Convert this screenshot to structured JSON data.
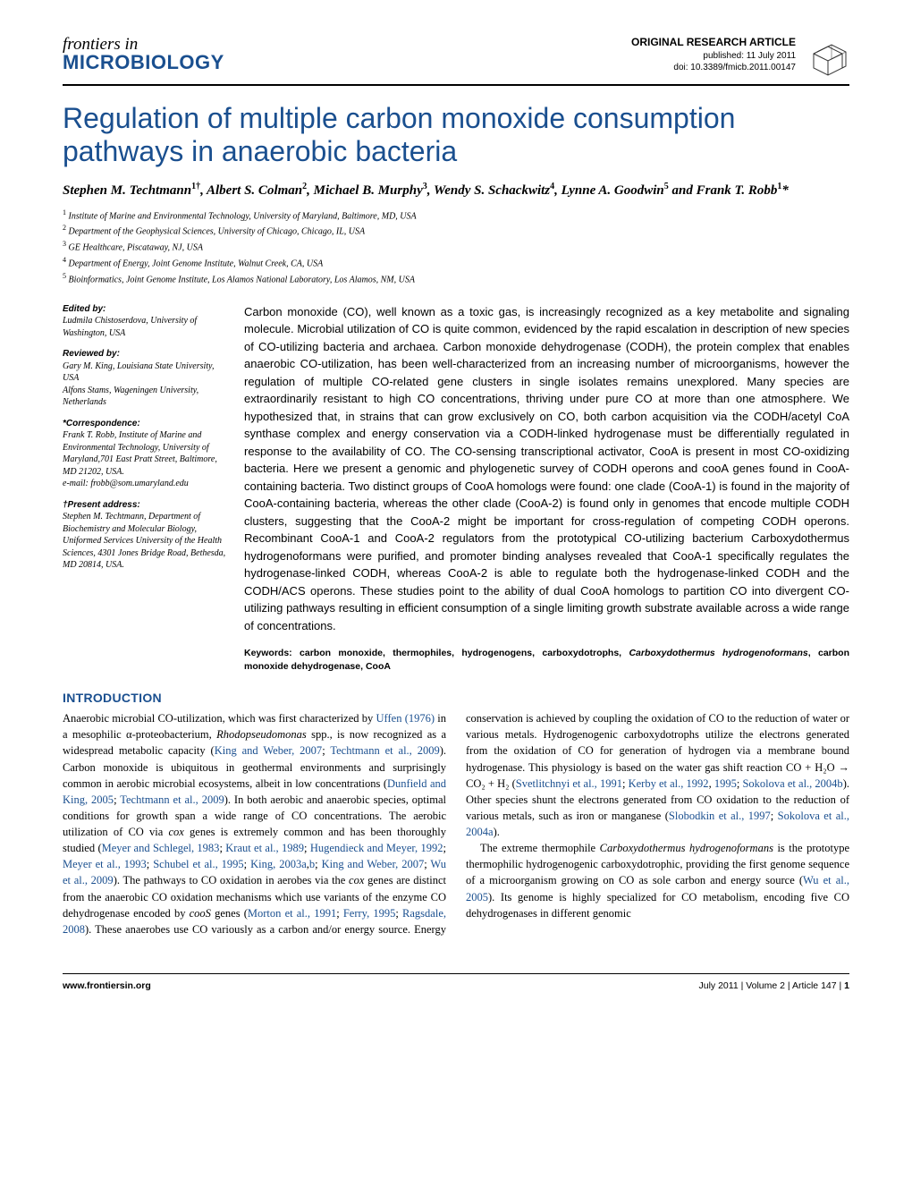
{
  "brand": {
    "top": "frontiers in",
    "bottom": "MICROBIOLOGY"
  },
  "meta": {
    "type": "ORIGINAL RESEARCH ARTICLE",
    "published": "published: 11 July 2011",
    "doi": "doi: 10.3389/fmicb.2011.00147"
  },
  "title": "Regulation of multiple carbon monoxide consumption pathways in anaerobic bacteria",
  "authors_html": "Stephen M. Techtmann<sup>1†</sup>, Albert S. Colman<sup>2</sup>, Michael B. Murphy<sup>3</sup>, Wendy S. Schackwitz<sup>4</sup>, Lynne A. Goodwin<sup>5</sup> and Frank T. Robb<sup>1</sup>*",
  "affiliations": [
    "Institute of Marine and Environmental Technology, University of Maryland, Baltimore, MD, USA",
    "Department of the Geophysical Sciences, University of Chicago, Chicago, IL, USA",
    "GE Healthcare, Piscataway, NJ, USA",
    "Department of Energy, Joint Genome Institute, Walnut Creek, CA, USA",
    "Bioinformatics, Joint Genome Institute, Los Alamos National Laboratory, Los Alamos, NM, USA"
  ],
  "sidebar": {
    "edited_by_label": "Edited by:",
    "edited_by": "Ludmila Chistoserdova, University of Washington, USA",
    "reviewed_by_label": "Reviewed by:",
    "reviewed_by_1": "Gary M. King, Louisiana State University, USA",
    "reviewed_by_2": "Alfons Stams, Wageningen University, Netherlands",
    "correspondence_label": "*Correspondence:",
    "correspondence": "Frank T. Robb, Institute of Marine and Environmental Technology, University of Maryland,701 East Pratt Street, Baltimore, MD 21202, USA.",
    "correspondence_email": "e-mail: frobb@som.umaryland.edu",
    "present_label": "†Present address:",
    "present": "Stephen M. Techtmann, Department of Biochemistry and Molecular Biology, Uniformed Services University of the Health Sciences, 4301 Jones Bridge Road, Bethesda, MD 20814, USA."
  },
  "abstract": "Carbon monoxide (CO), well known as a toxic gas, is increasingly recognized as a key metabolite and signaling molecule. Microbial utilization of CO is quite common, evidenced by the rapid escalation in description of new species of CO-utilizing bacteria and archaea. Carbon monoxide dehydrogenase (CODH), the protein complex that enables anaerobic CO-utilization, has been well-characterized from an increasing number of microorganisms, however the regulation of multiple CO-related gene clusters in single isolates remains unexplored. Many species are extraordinarily resistant to high CO concentrations, thriving under pure CO at more than one atmosphere. We hypothesized that, in strains that can grow exclusively on CO, both carbon acquisition via the CODH/acetyl CoA synthase complex and energy conservation via a CODH-linked hydrogenase must be differentially regulated in response to the availability of CO. The CO-sensing transcriptional activator, CooA is present in most CO-oxidizing bacteria. Here we present a genomic and phylogenetic survey of CODH operons and cooA genes found in CooA-containing bacteria. Two distinct groups of CooA homologs were found: one clade (CooA-1) is found in the majority of CooA-containing bacteria, whereas the other clade (CooA-2) is found only in genomes that encode multiple CODH clusters, suggesting that the CooA-2 might be important for cross-regulation of competing CODH operons. Recombinant CooA-1 and CooA-2 regulators from the prototypical CO-utilizing bacterium Carboxydothermus hydrogenoformans were purified, and promoter binding analyses revealed that CooA-1 specifically regulates the hydrogenase-linked CODH, whereas CooA-2 is able to regulate both the hydrogenase-linked CODH and the CODH/ACS operons. These studies point to the ability of dual CooA homologs to partition CO into divergent CO-utilizing pathways resulting in efficient consumption of a single limiting growth substrate available across a wide range of concentrations.",
  "keywords_prefix": "Keywords: carbon monoxide, thermophiles, hydrogenogens, carboxydotrophs, ",
  "keywords_italic": "Carboxydothermus hydrogenoformans",
  "keywords_suffix": ", carbon monoxide dehydrogenase, CooA",
  "intro_title": "INTRODUCTION",
  "intro_p1_pre": "Anaerobic microbial CO-utilization, which was first characterized by ",
  "intro_p1_ref1": "Uffen (1976)",
  "intro_p1_mid1": " in a mesophilic α-proteobacterium, ",
  "intro_p1_it1": "Rhodopseudomonas",
  "intro_p1_mid2": " spp., is now recognized as a widespread metabolic capacity (",
  "intro_p1_ref2": "King and Weber, 2007",
  "intro_p1_sep1": "; ",
  "intro_p1_ref3": "Techtmann et al., 2009",
  "intro_p1_mid3": "). Carbon monoxide is ubiquitous in geothermal environments and surprisingly common in aerobic microbial ecosystems, albeit in low concentrations (",
  "intro_p1_ref4": "Dunfield and King, 2005",
  "intro_p1_ref5": "Techtmann et al., 2009",
  "intro_p1_mid4": "). In both aerobic and anaerobic species, optimal conditions for growth span a wide range of CO concentrations. The aerobic utilization of CO via ",
  "intro_p1_it2": "cox",
  "intro_p1_mid5": " genes is extremely common and has been thoroughly studied (",
  "intro_p1_ref6": "Meyer and Schlegel, 1983",
  "intro_p1_ref7": "Kraut et al., 1989",
  "intro_p1_ref8": "Hugendieck and Meyer, 1992",
  "intro_p1_ref9": "Meyer et al., 1993",
  "intro_p1_ref10": "Schubel et al., 1995",
  "intro_p1_ref11": "King, 2003a",
  "intro_p1_ref11b": "b",
  "intro_p1_ref12": "King and Weber, 2007",
  "intro_p1_ref13": "Wu et al., 2009",
  "intro_p1_mid6": "). The pathways to CO oxidation in aerobes via the ",
  "intro_p1_it3": "cox",
  "intro_p1_mid7": " genes are distinct from the anaerobic CO oxidation mechanisms which use variants of the enzyme CO dehydrogenase encoded by ",
  "intro_p1_it4": "cooS",
  "intro_p1_mid8": " genes (",
  "intro_p1_ref14": "Morton et al., 1991",
  "intro_p1_ref15": "Ferry, 1995",
  "intro_p1_ref16": "Ragsdale, 2008",
  "intro_p1_mid9": "). These anaerobes use CO variously as a carbon and/or energy source. Energy conservation is achieved by coupling the oxidation of CO to the reduction of water or various metals. Hydrogenogenic carboxydotrophs utilize the electrons generated from the oxidation of CO for generation of hydrogen via a membrane bound hydrogenase. This physiology is based on the water gas shift reaction CO + H₂O → CO₂ + H₂ (",
  "intro_p1_ref17": "Svetlitchnyi et al., 1991",
  "intro_p1_ref18": "Kerby et al., 1992",
  "intro_p1_ref18b": "1995",
  "intro_p1_ref19": "Sokolova et al., 2004b",
  "intro_p1_mid10": "). Other species shunt the electrons generated from CO oxidation to the reduction of various metals, such as iron or manganese (",
  "intro_p1_ref20": "Slobodkin et al., 1997",
  "intro_p1_ref21": "Sokolova et al., 2004a",
  "intro_p1_end": ").",
  "intro_p2_pre": "The extreme thermophile ",
  "intro_p2_it1": "Carboxydothermus hydrogenoformans",
  "intro_p2_mid1": " is the prototype thermophilic hydrogenogenic carboxydotrophic, providing the first genome sequence of a microorganism growing on CO as sole carbon and energy source (",
  "intro_p2_ref1": "Wu et al., 2005",
  "intro_p2_mid2": "). Its genome is highly specialized for CO metabolism, encoding five CO dehydrogenases in different genomic",
  "footer": {
    "url": "www.frontiersin.org",
    "cite": "July 2011 | Volume 2 | Article 147 | ",
    "page": "1"
  },
  "colors": {
    "brand_blue": "#1a4f8f",
    "text": "#000000",
    "bg": "#ffffff"
  }
}
